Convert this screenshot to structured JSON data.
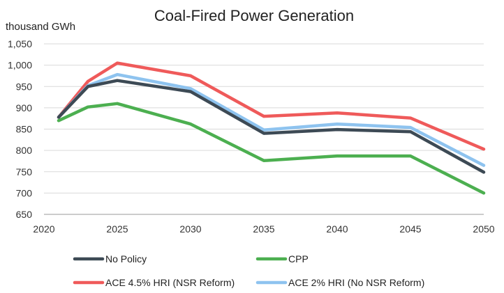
{
  "chart_data": {
    "type": "line",
    "title": "Coal-Fired Power Generation",
    "ylabel": "thousand GWh",
    "xlabel": "",
    "xlim": [
      2020,
      2050
    ],
    "ylim": [
      650,
      1050
    ],
    "xticks": [
      2020,
      2025,
      2030,
      2035,
      2040,
      2045,
      2050
    ],
    "xtick_labels": [
      "2020",
      "2025",
      "2030",
      "2035",
      "2040",
      "2045",
      "2050"
    ],
    "yticks": [
      650,
      700,
      750,
      800,
      850,
      900,
      950,
      1000,
      1050
    ],
    "ytick_labels": [
      "650",
      "700",
      "750",
      "800",
      "850",
      "900",
      "950",
      "1,000",
      "1,050"
    ],
    "grid": true,
    "legend_position": "bottom",
    "x": [
      2021,
      2023,
      2025,
      2030,
      2035,
      2040,
      2045,
      2050
    ],
    "series": [
      {
        "name": "No Policy",
        "color": "#3d4a55",
        "values": [
          878,
          950,
          964,
          938,
          840,
          849,
          844,
          749
        ]
      },
      {
        "name": "CPP",
        "color": "#4caf50",
        "values": [
          870,
          902,
          910,
          862,
          776,
          787,
          787,
          700
        ]
      },
      {
        "name": "ACE 4.5% HRI (NSR Reform)",
        "color": "#ef5a5a",
        "values": [
          878,
          962,
          1005,
          975,
          880,
          888,
          876,
          803
        ]
      },
      {
        "name": "ACE 2% HRI (No NSR Reform)",
        "color": "#8ec3ef",
        "values": [
          878,
          952,
          978,
          945,
          848,
          862,
          854,
          765
        ]
      }
    ]
  }
}
